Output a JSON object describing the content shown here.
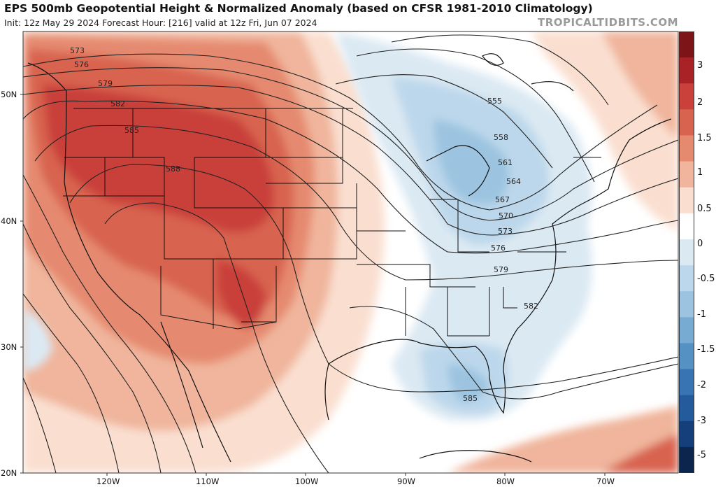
{
  "header": {
    "title": "EPS 500mb Geopotential Height & Normalized Anomaly (based on CFSR 1981-2010 Climatology)",
    "subtitle": "Init: 12z May 29 2024   Forecast Hour: [216]   valid at 12z Fri, Jun 07 2024",
    "credit": "TROPICALTIDBITS.COM"
  },
  "axes": {
    "lat_labels": [
      "50N",
      "40N",
      "30N",
      "20N"
    ],
    "lon_labels": [
      "120W",
      "110W",
      "100W",
      "90W",
      "80W",
      "70W"
    ]
  },
  "colorbar": {
    "labels": [
      "3",
      "2",
      "1.5",
      "1",
      "0.5",
      "0",
      "-0.5",
      "-1",
      "-1.5",
      "-2",
      "-3",
      "-5"
    ],
    "colors": [
      "#7d1417",
      "#a92326",
      "#c9413a",
      "#d8644f",
      "#e58a6f",
      "#f0b59c",
      "#fadfd0",
      "#ffffff",
      "#dbe9f3",
      "#bcd7eb",
      "#9cc4e0",
      "#77abd2",
      "#5691c4",
      "#3874b4",
      "#245b9d",
      "#143f7a",
      "#0b254d"
    ]
  },
  "contour_labels": [
    "573",
    "576",
    "579",
    "582",
    "585",
    "588",
    "555",
    "558",
    "561",
    "564",
    "567",
    "570",
    "573",
    "576",
    "579",
    "582",
    "585"
  ]
}
